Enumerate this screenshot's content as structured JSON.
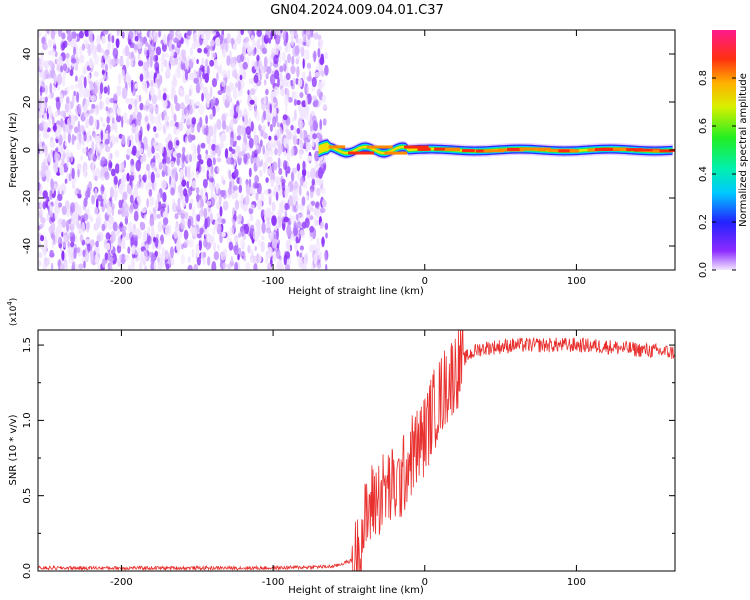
{
  "figure": {
    "title": "GN04.2024.009.04.01.C37"
  },
  "chart_data": [
    {
      "type": "heatmap",
      "xlabel": "Height of straight line (km)",
      "ylabel": "Frequency (Hz)",
      "xlim": [
        -255,
        165
      ],
      "ylim": [
        -50,
        50
      ],
      "x_ticks": [
        -200,
        -100,
        0,
        100
      ],
      "y_ticks": [
        -40,
        -20,
        0,
        20,
        40
      ],
      "grid": false,
      "colorbar": {
        "label": "Normalized spectral amplitude",
        "range": [
          0,
          1
        ],
        "ticks": [
          "0.0",
          "0.2",
          "0.4",
          "0.6",
          "0.8"
        ],
        "colormap": "rainbow"
      },
      "regions": [
        {
          "x_range": [
            -255,
            -70
          ],
          "y_range": [
            -50,
            50
          ],
          "amplitude": "low (0.0-0.2), broadband noise"
        },
        {
          "x_range": [
            -70,
            165
          ],
          "y_range": [
            -3,
            3
          ],
          "amplitude": "high (0.6-1.0), narrow band near 0 Hz"
        }
      ]
    },
    {
      "type": "line",
      "xlabel": "Height of straight line (km)",
      "ylabel": "SNR (10 * v/v)",
      "y_multiplier": "(x10^4)",
      "xlim": [
        -255,
        165
      ],
      "ylim": [
        0,
        1.6
      ],
      "x_ticks": [
        -200,
        -100,
        0,
        100
      ],
      "y_ticks": [
        "0.0",
        "0.5",
        "1.0",
        "1.5"
      ],
      "grid": false,
      "series_color": "#e8302e",
      "x": [
        -255,
        -200,
        -150,
        -100,
        -60,
        -45,
        -40,
        -35,
        -30,
        -25,
        -20,
        -15,
        -10,
        -5,
        0,
        5,
        10,
        15,
        20,
        25,
        30,
        35,
        40,
        50,
        60,
        80,
        100,
        120,
        140,
        165
      ],
      "y": [
        0.02,
        0.02,
        0.02,
        0.02,
        0.03,
        0.08,
        0.3,
        0.45,
        0.5,
        0.55,
        0.55,
        0.6,
        0.75,
        0.82,
        0.9,
        1.05,
        1.15,
        1.25,
        1.33,
        1.4,
        1.44,
        1.47,
        1.48,
        1.49,
        1.5,
        1.5,
        1.5,
        1.49,
        1.47,
        1.45
      ]
    }
  ]
}
